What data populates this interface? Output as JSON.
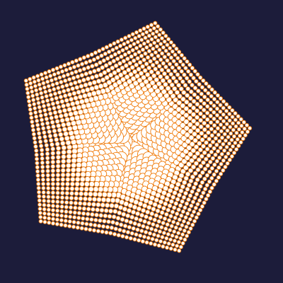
{
  "artwork": {
    "shape": "pentagon",
    "pattern": "dot-grid",
    "subdivisions_per_side": 17,
    "colors": {
      "background": "#1c1c3a",
      "dot_fill": "#ffffff",
      "dot_outline": "#f07d0e"
    }
  }
}
